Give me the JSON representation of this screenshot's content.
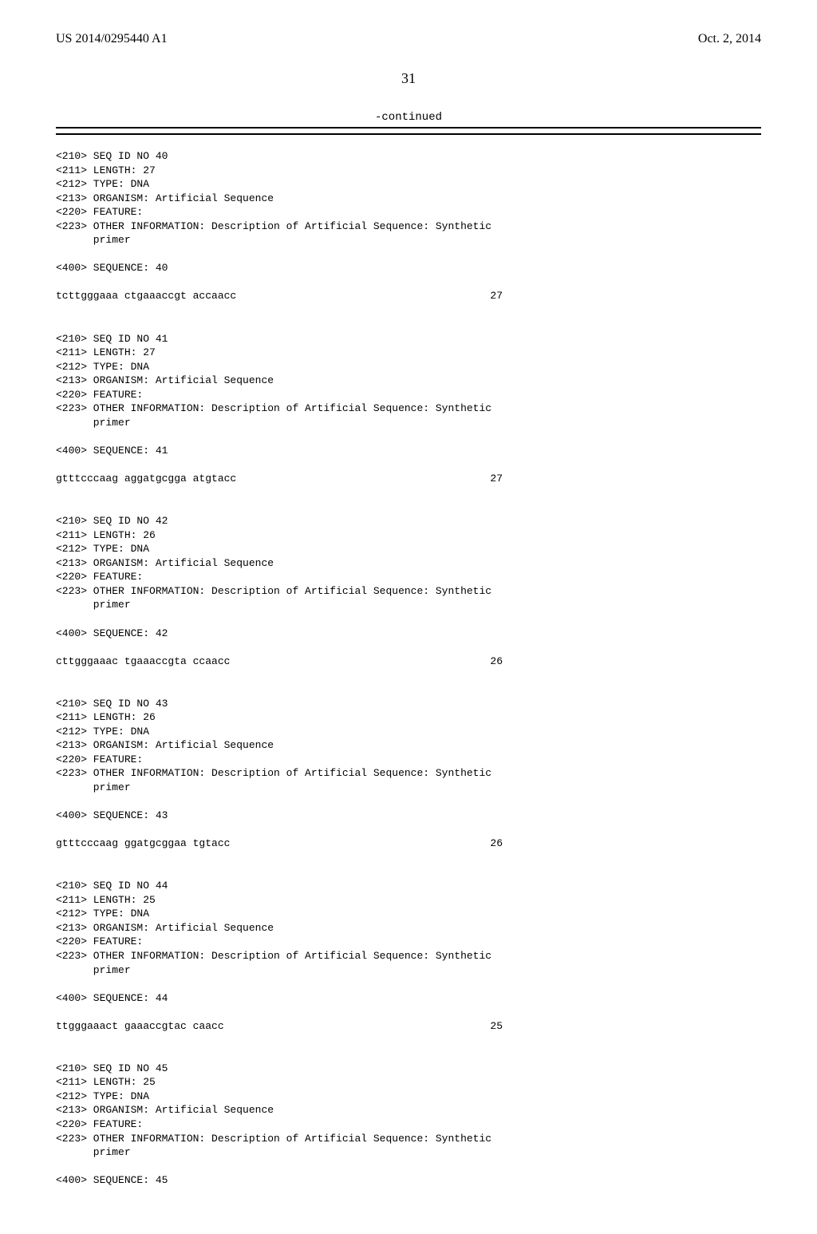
{
  "header": {
    "publication_number": "US 2014/0295440 A1",
    "publication_date": "Oct. 2, 2014"
  },
  "page_number": "31",
  "continued_label": "-continued",
  "entries": [
    {
      "tags": [
        "<210> SEQ ID NO 40",
        "<211> LENGTH: 27",
        "<212> TYPE: DNA",
        "<213> ORGANISM: Artificial Sequence",
        "<220> FEATURE:",
        "<223> OTHER INFORMATION: Description of Artificial Sequence: Synthetic",
        "      primer"
      ],
      "sequence_header": "<400> SEQUENCE: 40",
      "sequence_text": "tcttgggaaa ctgaaaccgt accaacc",
      "sequence_len": "27"
    },
    {
      "tags": [
        "<210> SEQ ID NO 41",
        "<211> LENGTH: 27",
        "<212> TYPE: DNA",
        "<213> ORGANISM: Artificial Sequence",
        "<220> FEATURE:",
        "<223> OTHER INFORMATION: Description of Artificial Sequence: Synthetic",
        "      primer"
      ],
      "sequence_header": "<400> SEQUENCE: 41",
      "sequence_text": "gtttcccaag aggatgcgga atgtacc",
      "sequence_len": "27"
    },
    {
      "tags": [
        "<210> SEQ ID NO 42",
        "<211> LENGTH: 26",
        "<212> TYPE: DNA",
        "<213> ORGANISM: Artificial Sequence",
        "<220> FEATURE:",
        "<223> OTHER INFORMATION: Description of Artificial Sequence: Synthetic",
        "      primer"
      ],
      "sequence_header": "<400> SEQUENCE: 42",
      "sequence_text": "cttgggaaac tgaaaccgta ccaacc",
      "sequence_len": "26"
    },
    {
      "tags": [
        "<210> SEQ ID NO 43",
        "<211> LENGTH: 26",
        "<212> TYPE: DNA",
        "<213> ORGANISM: Artificial Sequence",
        "<220> FEATURE:",
        "<223> OTHER INFORMATION: Description of Artificial Sequence: Synthetic",
        "      primer"
      ],
      "sequence_header": "<400> SEQUENCE: 43",
      "sequence_text": "gtttcccaag ggatgcggaa tgtacc",
      "sequence_len": "26"
    },
    {
      "tags": [
        "<210> SEQ ID NO 44",
        "<211> LENGTH: 25",
        "<212> TYPE: DNA",
        "<213> ORGANISM: Artificial Sequence",
        "<220> FEATURE:",
        "<223> OTHER INFORMATION: Description of Artificial Sequence: Synthetic",
        "      primer"
      ],
      "sequence_header": "<400> SEQUENCE: 44",
      "sequence_text": "ttgggaaact gaaaccgtac caacc",
      "sequence_len": "25"
    },
    {
      "tags": [
        "<210> SEQ ID NO 45",
        "<211> LENGTH: 25",
        "<212> TYPE: DNA",
        "<213> ORGANISM: Artificial Sequence",
        "<220> FEATURE:",
        "<223> OTHER INFORMATION: Description of Artificial Sequence: Synthetic",
        "      primer"
      ],
      "sequence_header": "<400> SEQUENCE: 45",
      "sequence_text": "",
      "sequence_len": ""
    }
  ]
}
